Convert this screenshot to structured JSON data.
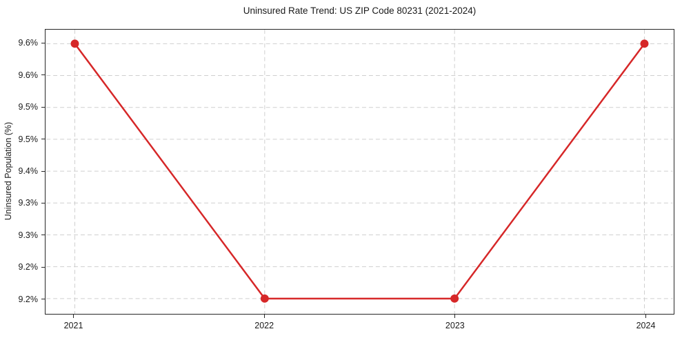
{
  "chart_data": {
    "type": "line",
    "title": "Uninsured Rate Trend: US ZIP Code 80231 (2021-2024)",
    "xlabel": "",
    "ylabel": "Uninsured Population (%)",
    "x": [
      2021,
      2022,
      2023,
      2024
    ],
    "x_tick_labels": [
      "2021",
      "2022",
      "2023",
      "2024"
    ],
    "y_ticks": [
      9.6,
      9.55,
      9.5,
      9.45,
      9.4,
      9.35,
      9.3,
      9.25,
      9.2
    ],
    "y_tick_labels": [
      "9.6%",
      "9.6%",
      "9.5%",
      "9.5%",
      "9.4%",
      "9.3%",
      "9.3%",
      "9.2%",
      "9.2%"
    ],
    "xlim": [
      2020.85,
      2024.15
    ],
    "ylim": [
      9.176,
      9.622
    ],
    "grid": true,
    "legend": false,
    "series": [
      {
        "values": [
          9.6,
          9.2,
          9.2,
          9.6
        ],
        "color": "#d62728",
        "marker": "circle",
        "marker_radius": 6,
        "line_width": 2.5
      }
    ],
    "colors": {
      "grid": "#cfcfcf",
      "spine": "#262626",
      "text": "#1a1a1a",
      "background": "#ffffff"
    }
  }
}
